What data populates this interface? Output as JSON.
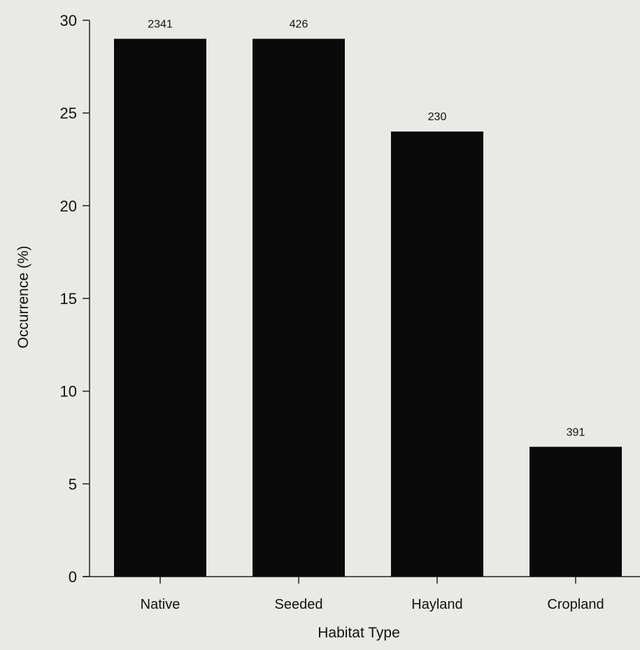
{
  "chart_data": {
    "type": "bar",
    "categories": [
      "Native",
      "Seeded",
      "Hayland",
      "Cropland"
    ],
    "values": [
      29,
      29,
      24,
      7
    ],
    "data_labels": [
      "2341",
      "426",
      "230",
      "391"
    ],
    "title": "",
    "xlabel": "Habitat Type",
    "ylabel": "Occurrence (%)",
    "ylim": [
      0,
      30
    ],
    "yticks": [
      0,
      5,
      10,
      15,
      20,
      25,
      30
    ],
    "grid": false,
    "bar_color": "#0a0a0a",
    "background_color": "#e9e9e5"
  }
}
